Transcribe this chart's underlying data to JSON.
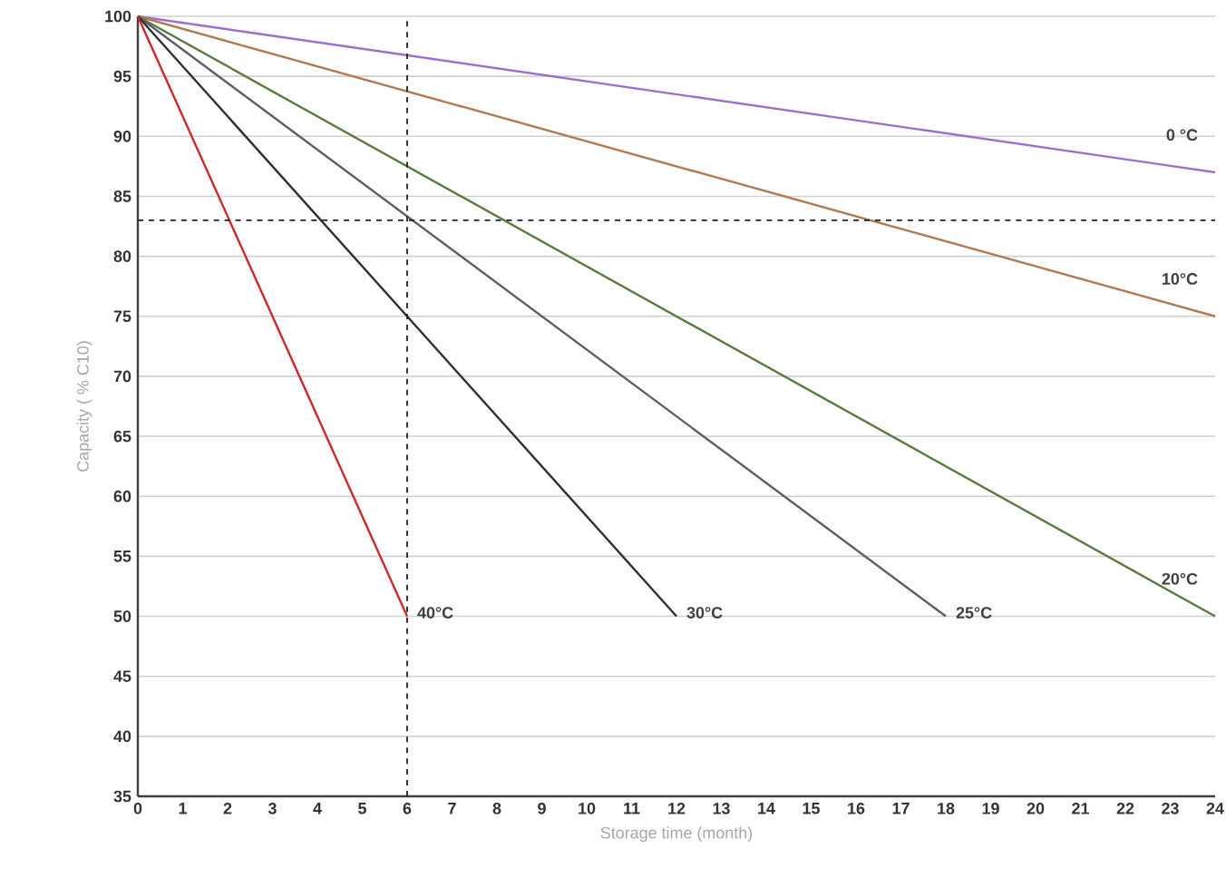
{
  "chart_data": {
    "type": "line",
    "xlabel": "Storage time (month)",
    "ylabel": "Capacity ( % C10)",
    "series": [
      {
        "name": "0 °C",
        "color": "#9b6fd0",
        "x": [
          0,
          24
        ],
        "values": [
          100,
          87
        ]
      },
      {
        "name": "10°C",
        "color": "#b27a52",
        "x": [
          0,
          24
        ],
        "values": [
          100,
          75
        ]
      },
      {
        "name": "20°C",
        "color": "#5b7b3e",
        "x": [
          0,
          24
        ],
        "values": [
          100,
          50
        ]
      },
      {
        "name": "25°C",
        "color": "#5a5e66",
        "x": [
          0,
          18
        ],
        "values": [
          100,
          50
        ]
      },
      {
        "name": "30°C",
        "color": "#2e2e2e",
        "x": [
          0,
          12
        ],
        "values": [
          100,
          50
        ]
      },
      {
        "name": "40°C",
        "color": "#d02828",
        "x": [
          0,
          6
        ],
        "values": [
          100,
          50
        ]
      }
    ],
    "xlim": [
      0,
      24
    ],
    "ylim": [
      35,
      100
    ],
    "xticks": [
      0,
      1,
      2,
      3,
      4,
      5,
      6,
      7,
      8,
      9,
      10,
      11,
      12,
      13,
      14,
      15,
      16,
      17,
      18,
      19,
      20,
      21,
      22,
      23,
      24
    ],
    "yticks": [
      35,
      40,
      45,
      50,
      55,
      60,
      65,
      70,
      75,
      80,
      85,
      90,
      95,
      100
    ],
    "ref_lines": [
      {
        "axis": "y",
        "value": 83,
        "color": "#222222",
        "line_style": "dashed"
      },
      {
        "axis": "x",
        "value": 6,
        "color": "#222222",
        "line_style": "dashed"
      }
    ],
    "grid": "y",
    "legend": false,
    "marker": "none",
    "line_style": "solid"
  }
}
